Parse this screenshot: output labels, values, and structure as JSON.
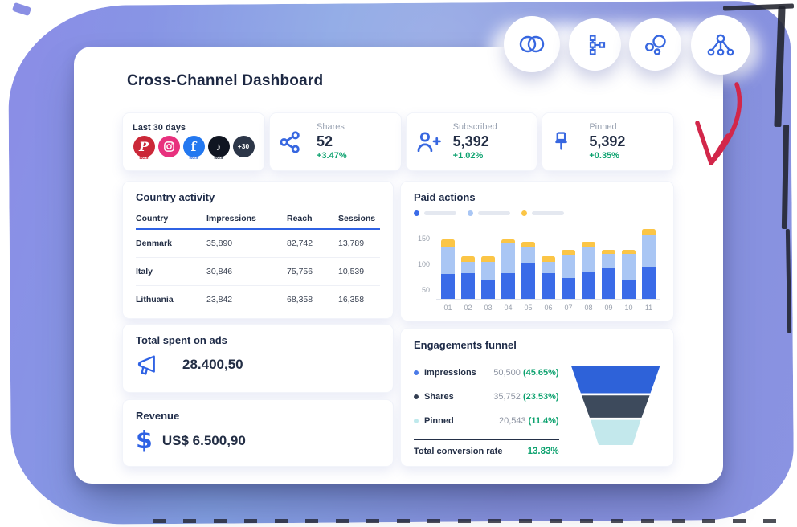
{
  "page": {
    "title": "Cross-Channel Dashboard"
  },
  "toolbar": {
    "buttons": [
      {
        "icon": "venn-circles-icon"
      },
      {
        "icon": "org-chart-icon"
      },
      {
        "icon": "bubbles-icon"
      },
      {
        "icon": "network-tree-icon"
      }
    ]
  },
  "stats": {
    "period_card": {
      "label": "Last 30 days",
      "channels": [
        {
          "name": "pinterest",
          "badge": "ads",
          "color": "#cb2838"
        },
        {
          "name": "instagram",
          "color": "#e8317e"
        },
        {
          "name": "facebook",
          "badge": "ads",
          "color": "#2378f0",
          "badge_color": "#4b7de0"
        },
        {
          "name": "tiktok",
          "badge": "ads",
          "color": "#101521",
          "badge_color": "#39404e"
        },
        {
          "name": "more",
          "label": "+30",
          "color": "#2c3648"
        }
      ]
    },
    "cards": [
      {
        "icon": "share-icon",
        "label": "Shares",
        "value": "52",
        "delta": "+3.47%"
      },
      {
        "icon": "user-plus-icon",
        "label": "Subscribed",
        "value": "5,392",
        "delta": "+1.02%"
      },
      {
        "icon": "pin-icon",
        "label": "Pinned",
        "value": "5,392",
        "delta": "+0.35%"
      }
    ]
  },
  "country_activity": {
    "title": "Country activity",
    "columns": [
      "Country",
      "Impressions",
      "Reach",
      "Sessions"
    ],
    "rows": [
      [
        "Denmark",
        "35,890",
        "82,742",
        "13,789"
      ],
      [
        "Italy",
        "30,846",
        "75,756",
        "10,539"
      ],
      [
        "Lithuania",
        "23,842",
        "68,358",
        "16,358"
      ]
    ]
  },
  "chart_data": {
    "type": "bar",
    "stacked": true,
    "title": "Paid actions",
    "categories": [
      "01",
      "02",
      "03",
      "04",
      "05",
      "06",
      "07",
      "08",
      "09",
      "10",
      "11"
    ],
    "series": [
      {
        "name": "primary",
        "color": "#3a6be8",
        "values": [
          83,
          85,
          70,
          85,
          105,
          85,
          75,
          87,
          95,
          73,
          97
        ]
      },
      {
        "name": "secondary",
        "color": "#a9c6f4",
        "values": [
          52,
          22,
          37,
          57,
          30,
          22,
          45,
          49,
          27,
          49,
          63
        ]
      },
      {
        "name": "tertiary",
        "color": "#fbc546",
        "values": [
          15,
          11,
          11,
          8,
          10,
          11,
          10,
          10,
          8,
          8,
          10
        ]
      }
    ],
    "yticks": [
      50,
      100,
      150
    ],
    "ylim": [
      35,
      178
    ],
    "xlabel": "",
    "ylabel": "",
    "legend_position": "top",
    "legend_placeholder": true,
    "grid": false
  },
  "total_spent": {
    "title": "Total spent on ads",
    "value": "28.400,50"
  },
  "revenue": {
    "title": "Revenue",
    "value": "US$ 6.500,90"
  },
  "funnel": {
    "title": "Engagements funnel",
    "rows": [
      {
        "label": "Impressions",
        "value": "50,500",
        "pct": "(45.65%)",
        "dot_color": "#4a7ae8"
      },
      {
        "label": "Shares",
        "value": "35,752",
        "pct": "(23.53%)",
        "dot_color": "#333e52"
      },
      {
        "label": "Pinned",
        "value": "20,543",
        "pct": "(11.4%)",
        "dot_color": "#bfe9ec"
      }
    ],
    "total_label": "Total conversion rate",
    "total_value": "13.83%",
    "segment_colors": [
      "#2e62d9",
      "#3d4a5c",
      "#c3e8ec"
    ]
  },
  "colors": {
    "accent_blue": "#2f62e4",
    "positive_green": "#0da26f",
    "navy_text": "#1c2742",
    "muted_text": "#9aa3b2",
    "background_blob": "#8794e2",
    "arrow_red": "#d2274a"
  }
}
